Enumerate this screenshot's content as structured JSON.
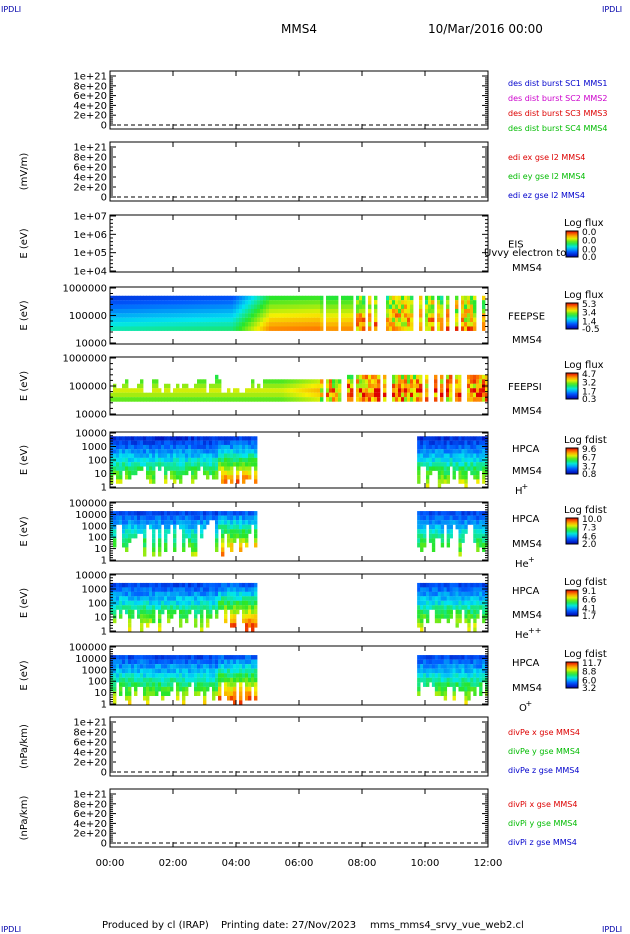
{
  "header": {
    "corner_tl": "IPDLI",
    "corner_tr": "IPDLI",
    "spacecraft": "MMS4",
    "date": "10/Mar/2016 00:00",
    "corner_bl": "IPDLI",
    "corner_br": "IPDLI"
  },
  "footer": {
    "produced_by": "Produced by cl (IRAP)",
    "printing_date": "Printing date: 27/Nov/2023",
    "filename": "mms_mms4_srvy_vue_web2.cl"
  },
  "chart_data": {
    "type": "heatmap",
    "x_ticks": [
      "00:00",
      "02:00",
      "04:00",
      "06:00",
      "08:00",
      "10:00",
      "12:00"
    ],
    "xlim": [
      "00:00",
      "12:00"
    ],
    "panels": [
      {
        "id": "des-dist",
        "type": "line",
        "ylabel": "",
        "yticks": [
          "1e+21",
          "8e+20",
          "6e+20",
          "4e+20",
          "2e+20",
          "0"
        ],
        "zero_line": "dashed",
        "legend": [
          {
            "label": "des dist burst SC1 MMS1",
            "color": "#0000cc"
          },
          {
            "label": "des dist burst SC2 MMS2",
            "color": "#cc00cc"
          },
          {
            "label": "des dist burst SC3 MMS3",
            "color": "#dd0000"
          },
          {
            "label": "des dist burst SC4 MMS4",
            "color": "#00bb00"
          }
        ]
      },
      {
        "id": "edi",
        "type": "line",
        "ylabel": "(mV/m)",
        "yticks": [
          "1e+21",
          "8e+20",
          "6e+20",
          "4e+20",
          "2e+20",
          "0"
        ],
        "zero_line": "dashed",
        "legend": [
          {
            "label": "edi ex gse l2 MMS4",
            "color": "#dd0000"
          },
          {
            "label": "edi ey gse l2 MMS4",
            "color": "#00bb00"
          },
          {
            "label": "edi ez gse l2 MMS4",
            "color": "#0000cc"
          }
        ]
      },
      {
        "id": "eis",
        "type": "heatmap",
        "ylabel": "E (eV)",
        "yticks": [
          "1e+07",
          "1e+06",
          "1e+05",
          "1e+04"
        ],
        "instrument": "EIS",
        "spacecraft": "MMS4",
        "overlay_text": "Uvvy electron to",
        "colorbar_label": "Log flux",
        "colorbar_ticks": [
          "0.0",
          "0.0",
          "0.0",
          "0.0"
        ],
        "data_intervals": []
      },
      {
        "id": "feepse",
        "type": "heatmap",
        "ylabel": "E (eV)",
        "yticks": [
          "1000000",
          "100000",
          "10000"
        ],
        "instrument": "FEEPSE",
        "spacecraft": "MMS4",
        "colorbar_label": "Log flux",
        "colorbar_ticks": [
          "5.3",
          "3.4",
          "1.4",
          "-0.5"
        ],
        "data_intervals": [
          [
            "00:00",
            "12:00"
          ]
        ]
      },
      {
        "id": "feepsi",
        "type": "heatmap",
        "ylabel": "E (eV)",
        "yticks": [
          "1000000",
          "100000",
          "10000"
        ],
        "instrument": "FEEPSI",
        "spacecraft": "MMS4",
        "colorbar_label": "Log flux",
        "colorbar_ticks": [
          "4.7",
          "3.2",
          "1.7",
          "0.3"
        ],
        "data_intervals": [
          [
            "00:00",
            "12:00"
          ]
        ]
      },
      {
        "id": "hpca-h",
        "type": "heatmap",
        "ylabel": "E (eV)",
        "yticks": [
          "10000",
          "1000",
          "100",
          "10",
          "1"
        ],
        "instrument": "HPCA",
        "spacecraft": "MMS4",
        "species": "H",
        "species_charge": "+",
        "colorbar_label": "Log fdist",
        "colorbar_ticks": [
          "9.6",
          "6.7",
          "3.7",
          "0.8"
        ],
        "data_intervals": [
          [
            "00:00",
            "04:40"
          ],
          [
            "09:45",
            "12:00"
          ]
        ]
      },
      {
        "id": "hpca-he",
        "type": "heatmap",
        "ylabel": "E (eV)",
        "yticks": [
          "100000",
          "10000",
          "1000",
          "100",
          "10",
          "1"
        ],
        "instrument": "HPCA",
        "spacecraft": "MMS4",
        "species": "He",
        "species_charge": "+",
        "colorbar_label": "Log fdist",
        "colorbar_ticks": [
          "10.0",
          "7.3",
          "4.6",
          "2.0"
        ],
        "data_intervals": [
          [
            "00:00",
            "04:40"
          ],
          [
            "09:45",
            "12:00"
          ]
        ]
      },
      {
        "id": "hpca-hepp",
        "type": "heatmap",
        "ylabel": "E (eV)",
        "yticks": [
          "10000",
          "1000",
          "100",
          "10",
          "1"
        ],
        "instrument": "HPCA",
        "spacecraft": "MMS4",
        "species": "He",
        "species_charge": "++",
        "colorbar_label": "Log fdist",
        "colorbar_ticks": [
          "9.1",
          "6.6",
          "4.1",
          "1.7"
        ],
        "data_intervals": [
          [
            "00:00",
            "04:40"
          ],
          [
            "09:45",
            "12:00"
          ]
        ]
      },
      {
        "id": "hpca-o",
        "type": "heatmap",
        "ylabel": "E (eV)",
        "yticks": [
          "100000",
          "10000",
          "1000",
          "100",
          "10",
          "1"
        ],
        "instrument": "HPCA",
        "spacecraft": "MMS4",
        "species": "O",
        "species_charge": "+",
        "colorbar_label": "Log fdist",
        "colorbar_ticks": [
          "11.7",
          "8.8",
          "6.0",
          "3.2"
        ],
        "data_intervals": [
          [
            "00:00",
            "04:40"
          ],
          [
            "09:45",
            "12:00"
          ]
        ]
      },
      {
        "id": "divpe",
        "type": "line",
        "ylabel": "(nPa/km)",
        "yticks": [
          "1e+21",
          "8e+20",
          "6e+20",
          "4e+20",
          "2e+20",
          "0"
        ],
        "zero_line": "dashed",
        "legend": [
          {
            "label": "divPe x gse MMS4",
            "color": "#dd0000"
          },
          {
            "label": "divPe y gse MMS4",
            "color": "#00bb00"
          },
          {
            "label": "divPe z gse MMS4",
            "color": "#0000cc"
          }
        ]
      },
      {
        "id": "divpi",
        "type": "line",
        "ylabel": "(nPa/km)",
        "yticks": [
          "1e+21",
          "8e+20",
          "6e+20",
          "4e+20",
          "2e+20",
          "0"
        ],
        "zero_line": "dashed",
        "legend": [
          {
            "label": "divPi x gse MMS4",
            "color": "#dd0000"
          },
          {
            "label": "divPi y gse MMS4",
            "color": "#00bb00"
          },
          {
            "label": "divPi z gse MMS4",
            "color": "#0000cc"
          }
        ]
      }
    ]
  }
}
